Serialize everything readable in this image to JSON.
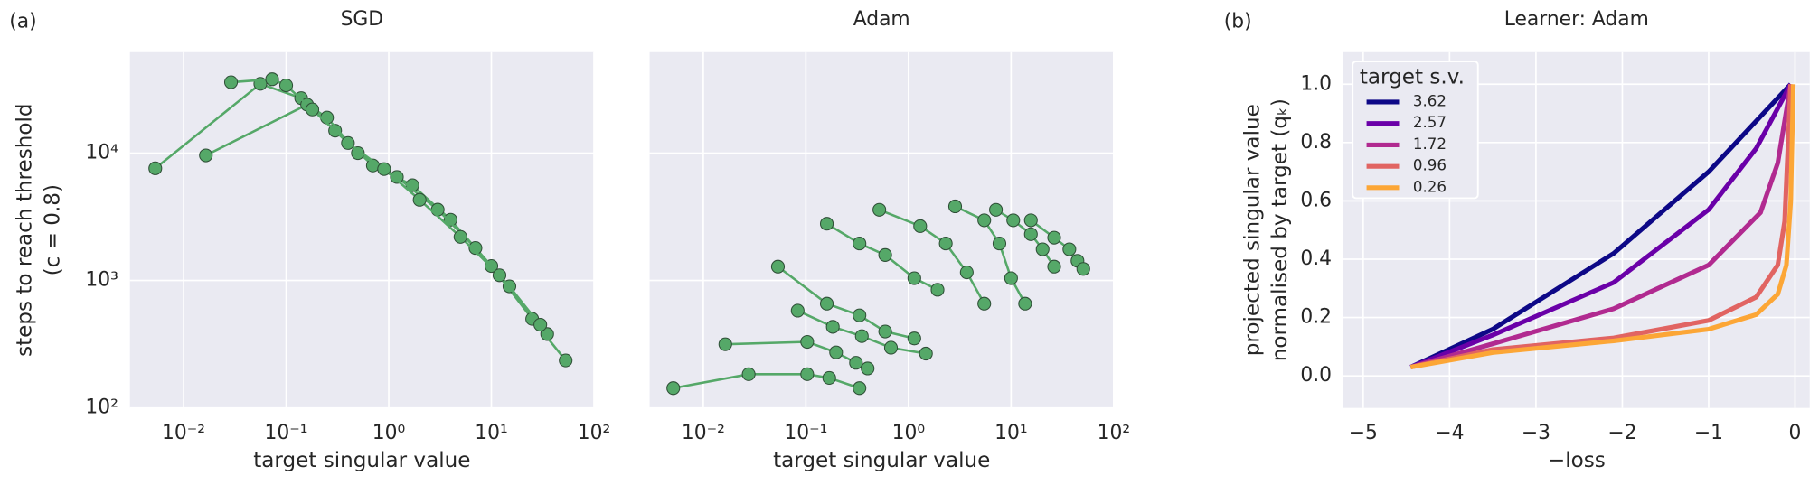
{
  "chart_data": [
    {
      "type": "line",
      "markers": true,
      "panel_label": "(a)",
      "title": "SGD",
      "xlabel": "target singular value",
      "ylabel": [
        "steps to reach threshold",
        "(c = 0.8)"
      ],
      "xlog": true,
      "ylog": true,
      "grid": true,
      "color": "#55a868",
      "xlim": [
        0.003,
        100
      ],
      "ylim": [
        100,
        62000
      ],
      "xticks": [
        {
          "value": 0.01,
          "label": "10⁻²"
        },
        {
          "value": 0.1,
          "label": "10⁻¹"
        },
        {
          "value": 1,
          "label": "10⁰"
        },
        {
          "value": 10,
          "label": "10¹"
        },
        {
          "value": 100,
          "label": "10²"
        }
      ],
      "yticks": [
        {
          "value": 100,
          "label": "10²"
        },
        {
          "value": 1000,
          "label": "10³"
        },
        {
          "value": 10000,
          "label": "10⁴"
        }
      ],
      "series": [
        {
          "x": [
            0.0053,
            0.056,
            0.14,
            0.3,
            0.7,
            1.7,
            4,
            10,
            25,
            53
          ],
          "values": [
            7600,
            35000,
            27000,
            15000,
            8000,
            5600,
            3000,
            1300,
            500,
            236
          ]
        },
        {
          "x": [
            0.0165,
            0.16,
            0.25,
            0.5,
            1.2,
            3,
            7,
            15,
            35
          ],
          "values": [
            9600,
            24000,
            19000,
            10000,
            6500,
            3600,
            1800,
            900,
            380
          ]
        },
        {
          "x": [
            0.029,
            0.073,
            0.1,
            0.18,
            0.4,
            0.9,
            2,
            5,
            12,
            30
          ],
          "values": [
            36000,
            38000,
            34000,
            22000,
            12000,
            7500,
            4300,
            2200,
            1100,
            450
          ]
        }
      ]
    },
    {
      "type": "line",
      "markers": true,
      "title": "Adam",
      "xlabel": "target singular value",
      "sharey": true,
      "xlog": true,
      "ylog": true,
      "grid": true,
      "color": "#55a868",
      "xlim": [
        0.003,
        100
      ],
      "ylim": [
        100,
        62000
      ],
      "xticks": [
        {
          "value": 0.01,
          "label": "10⁻²"
        },
        {
          "value": 0.1,
          "label": "10⁻¹"
        },
        {
          "value": 1,
          "label": "10⁰"
        },
        {
          "value": 10,
          "label": "10¹"
        },
        {
          "value": 100,
          "label": "10²"
        }
      ],
      "yticks": [
        100,
        1000,
        10000
      ],
      "series": [
        {
          "x": [
            0.0051,
            0.0277,
            0.103,
            0.169,
            0.333
          ],
          "values": [
            143,
            184,
            184,
            172,
            143
          ]
        },
        {
          "x": [
            0.0164,
            0.103,
            0.197,
            0.308,
            0.4
          ],
          "values": [
            316,
            330,
            273,
            226,
            204
          ]
        },
        {
          "x": [
            0.0832,
            0.183,
            0.351,
            0.675,
            1.48
          ],
          "values": [
            580,
            433,
            366,
            297,
            267
          ]
        },
        {
          "x": [
            0.0534,
            0.16,
            0.333,
            0.593,
            1.14
          ],
          "values": [
            1285,
            658,
            533,
            398,
            351
          ]
        },
        {
          "x": [
            0.16,
            0.333,
            0.593,
            1.14,
            1.92
          ],
          "values": [
            2790,
            1953,
            1585,
            1043,
            846
          ]
        },
        {
          "x": [
            0.52,
            1.3,
            2.31,
            3.7,
            5.48
          ],
          "values": [
            3590,
            2673,
            1953,
            1159,
            658
          ]
        },
        {
          "x": [
            2.85,
            5.48,
            7.7,
            10,
            13.7
          ],
          "values": [
            3820,
            2970,
            1953,
            1043,
            658
          ]
        },
        {
          "x": [
            7.12,
            10.5,
            15.6,
            20.3,
            26.3
          ],
          "values": [
            3590,
            2970,
            2310,
            1758,
            1285
          ]
        },
        {
          "x": [
            15.6,
            26.3,
            37,
            44.4,
            50.6
          ],
          "values": [
            2970,
            2170,
            1758,
            1428,
            1233
          ]
        }
      ]
    },
    {
      "type": "line",
      "markers": false,
      "panel_label": "(b)",
      "title": "Learner: Adam",
      "xlabel": "−loss",
      "ylabel": [
        "projected singular value",
        "normalised by target (qₖ)"
      ],
      "grid": true,
      "xlim": [
        -5.23,
        0.17
      ],
      "ylim": [
        -0.11,
        1.11
      ],
      "xticks": [
        {
          "value": -5,
          "label": "−5"
        },
        {
          "value": -4,
          "label": "−4"
        },
        {
          "value": -3,
          "label": "−3"
        },
        {
          "value": -2,
          "label": "−2"
        },
        {
          "value": -1,
          "label": "−1"
        },
        0
      ],
      "yticks": [
        {
          "value": 0,
          "label": "0.0"
        },
        {
          "value": 0.2,
          "label": "0.2"
        },
        {
          "value": 0.4,
          "label": "0.4"
        },
        {
          "value": 0.6,
          "label": "0.6"
        },
        {
          "value": 0.8,
          "label": "0.8"
        },
        {
          "value": 1,
          "label": "1.0"
        }
      ],
      "legend_title": "target s.v.",
      "legend": "upper left",
      "series": [
        {
          "name": "3.62",
          "color": "#0d0887",
          "x": [
            -4.45,
            -3.5,
            -2.1,
            -1.0,
            -0.05
          ],
          "values": [
            0.03,
            0.16,
            0.42,
            0.7,
            1.0
          ]
        },
        {
          "name": "2.57",
          "color": "#6a00a8",
          "x": [
            -4.45,
            -3.5,
            -2.1,
            -1.0,
            -0.45,
            -0.05
          ],
          "values": [
            0.03,
            0.14,
            0.32,
            0.57,
            0.78,
            1.0
          ]
        },
        {
          "name": "1.72",
          "color": "#b12a90",
          "x": [
            -4.45,
            -3.5,
            -2.1,
            -1.0,
            -0.4,
            -0.2,
            -0.05
          ],
          "values": [
            0.03,
            0.11,
            0.23,
            0.38,
            0.56,
            0.73,
            1.0
          ]
        },
        {
          "name": "0.96",
          "color": "#e16462",
          "x": [
            -4.45,
            -3.5,
            -2.1,
            -1.0,
            -0.45,
            -0.2,
            -0.12,
            -0.05
          ],
          "values": [
            0.03,
            0.09,
            0.13,
            0.19,
            0.27,
            0.38,
            0.53,
            1.0
          ]
        },
        {
          "name": "0.26",
          "color": "#fca636",
          "x": [
            -4.45,
            -3.5,
            -2.1,
            -1.0,
            -0.45,
            -0.2,
            -0.1,
            -0.05,
            -0.02
          ],
          "values": [
            0.03,
            0.08,
            0.12,
            0.16,
            0.21,
            0.28,
            0.38,
            0.6,
            1.0
          ]
        }
      ]
    }
  ]
}
